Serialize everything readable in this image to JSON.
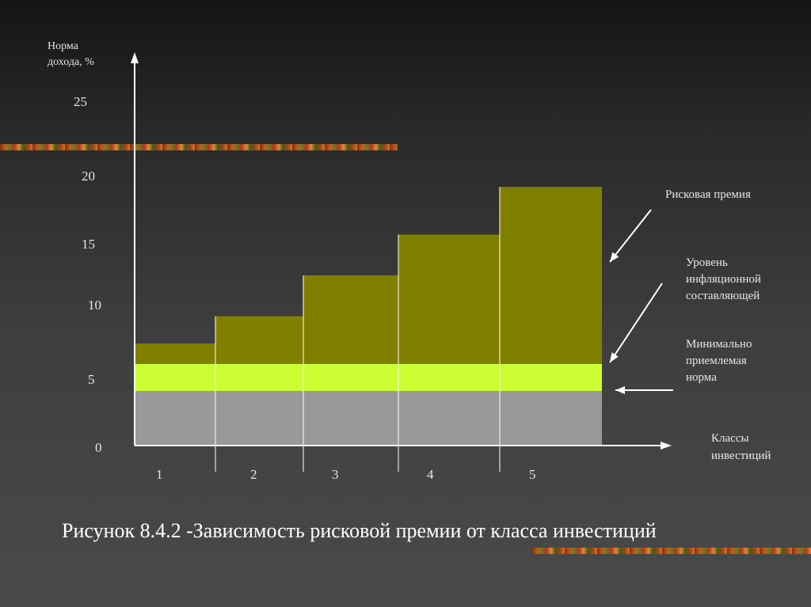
{
  "caption": "Рисунок 8.4.2 -Зависимость рисковой премии от класса инвестиций",
  "colors": {
    "background": "#3a3a3a",
    "risk_premium": "#808000",
    "inflation": "#ccff33",
    "minimum": "#999999",
    "axis": "#ffffff",
    "text": "#e6e6e6"
  },
  "chart_data": {
    "type": "bar",
    "stacked": true,
    "ylabel": [
      "Норма",
      "дохода, %"
    ],
    "xlabel": [
      "Классы",
      "инвестиций"
    ],
    "yticks": [
      0,
      5,
      10,
      15,
      20,
      25
    ],
    "ylim": [
      0,
      25
    ],
    "categories": [
      "1",
      "2",
      "3",
      "4",
      "5"
    ],
    "series": [
      {
        "name": "Минимально приемлемая норма",
        "values": [
          4,
          4,
          4,
          4,
          4
        ]
      },
      {
        "name": "Уровень инфляционной составляющей",
        "values": [
          2,
          2,
          2,
          2,
          2
        ]
      },
      {
        "name": "Рисковая премия",
        "values": [
          1.5,
          3.5,
          6.5,
          9.5,
          13
        ]
      }
    ],
    "annotations": [
      {
        "text": [
          "Рисковая премия"
        ]
      },
      {
        "text": [
          "Уровень",
          "инфляционной",
          "составляющей"
        ]
      },
      {
        "text": [
          "Минимально",
          "приемлемая",
          "норма"
        ]
      }
    ],
    "grid": false
  }
}
